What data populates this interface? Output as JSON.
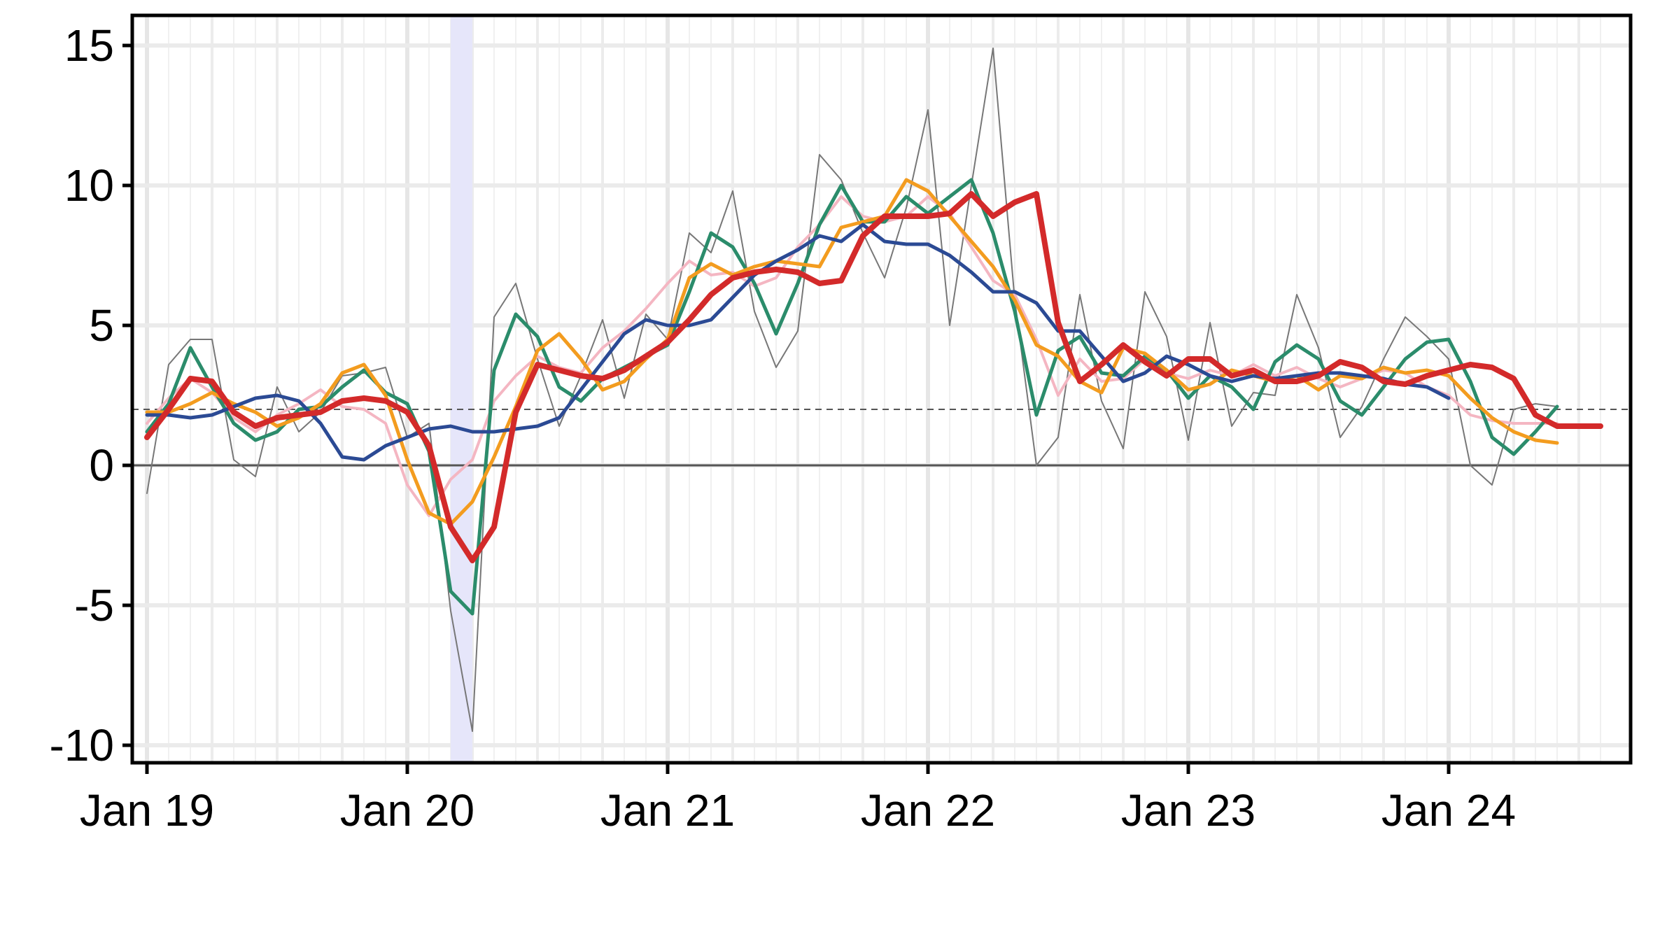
{
  "chart_data": {
    "type": "line",
    "title": "",
    "xlabel": "",
    "ylabel": "",
    "x_start": "2019-01",
    "x_step": "1 month",
    "xlim": [
      "2019-01",
      "2024-08"
    ],
    "ylim": [
      -10.5,
      15.9
    ],
    "yticks": [
      15,
      10,
      5,
      0,
      -5,
      -10
    ],
    "ytick_labels": [
      "15",
      "10",
      "5",
      "0",
      "-5",
      "-10"
    ],
    "xticks": [
      "2019-01",
      "2020-01",
      "2021-01",
      "2022-01",
      "2023-01",
      "2024-01"
    ],
    "xtick_labels": [
      "Jan 19",
      "Jan 20",
      "Jan 21",
      "Jan 22",
      "Jan 23",
      "Jan 24"
    ],
    "grid": true,
    "legend": "none",
    "shaded_periods": [
      {
        "start": "2020-03",
        "end": "2020-04",
        "color": "#e6e6fa"
      }
    ],
    "reference_lines": [
      {
        "y": 0,
        "style": "solid",
        "color": "#555555"
      },
      {
        "y": 2,
        "style": "dashed",
        "color": "#555555"
      }
    ],
    "series": [
      {
        "color": "#777777",
        "width": 2,
        "values": [
          -1.0,
          3.6,
          4.5,
          4.5,
          0.2,
          -0.4,
          2.8,
          1.2,
          1.9,
          3.2,
          3.3,
          3.5,
          1.0,
          1.5,
          -5.2,
          -9.5,
          5.3,
          6.5,
          3.8,
          1.4,
          3.2,
          5.2,
          2.4,
          5.4,
          4.5,
          8.3,
          7.6,
          9.8,
          5.5,
          3.5,
          4.8,
          11.1,
          10.2,
          8.3,
          6.7,
          9.2,
          12.7,
          5.0,
          10.0,
          14.9,
          5.9,
          0.0,
          1.0,
          6.1,
          2.3,
          0.6,
          6.2,
          4.6,
          0.9,
          5.1,
          1.4,
          2.6,
          2.5,
          6.1,
          4.2,
          1.0,
          2.1,
          3.8,
          5.3,
          4.6,
          3.8,
          0.0,
          -0.7,
          2.0,
          2.2,
          2.1
        ]
      },
      {
        "color": "#f4b6c2",
        "width": 4,
        "values": [
          1.5,
          2.4,
          3.1,
          2.6,
          1.7,
          1.2,
          1.8,
          2.2,
          2.7,
          2.1,
          2.0,
          1.5,
          -0.7,
          -1.8,
          -0.5,
          0.2,
          2.3,
          3.2,
          3.9,
          3.5,
          3.3,
          4.2,
          4.8,
          5.6,
          6.5,
          7.3,
          6.8,
          6.9,
          6.4,
          6.7,
          7.8,
          8.6,
          9.6,
          8.9,
          8.7,
          8.9,
          9.6,
          9.0,
          7.8,
          6.6,
          6.1,
          4.5,
          2.5,
          3.8,
          3.0,
          3.1,
          3.8,
          3.3,
          3.1,
          3.4,
          3.2,
          3.6,
          3.2,
          3.5,
          3.1,
          2.8,
          3.1,
          3.4,
          3.3,
          2.8,
          2.5,
          1.8,
          1.6,
          1.5,
          1.5,
          1.5
        ]
      },
      {
        "color": "#2b8c6b",
        "width": 5,
        "values": [
          1.2,
          2.2,
          4.2,
          2.8,
          1.5,
          0.9,
          1.2,
          2.0,
          2.1,
          2.8,
          3.4,
          2.6,
          2.2,
          0.5,
          -4.5,
          -5.3,
          3.4,
          5.4,
          4.6,
          2.8,
          2.3,
          3.1,
          3.5,
          3.9,
          4.3,
          6.2,
          8.3,
          7.8,
          6.5,
          4.7,
          6.5,
          8.6,
          10.0,
          8.7,
          8.7,
          9.6,
          9.0,
          9.6,
          10.2,
          8.3,
          5.5,
          1.8,
          4.1,
          4.6,
          3.3,
          3.2,
          3.9,
          3.4,
          2.4,
          3.2,
          2.8,
          2.0,
          3.7,
          4.3,
          3.8,
          2.3,
          1.8,
          2.8,
          3.8,
          4.4,
          4.5,
          3.0,
          1.0,
          0.4,
          1.2,
          2.1
        ]
      },
      {
        "color": "#f39c1f",
        "width": 5,
        "values": [
          1.9,
          1.9,
          2.2,
          2.6,
          2.2,
          1.9,
          1.4,
          1.7,
          2.2,
          3.3,
          3.6,
          2.5,
          0.2,
          -1.7,
          -2.1,
          -1.3,
          0.3,
          2.1,
          4.1,
          4.7,
          3.8,
          2.7,
          3.0,
          3.8,
          4.5,
          6.7,
          7.2,
          6.8,
          7.1,
          7.3,
          7.2,
          7.1,
          8.5,
          8.7,
          8.9,
          10.2,
          9.8,
          8.9,
          8.0,
          7.1,
          5.9,
          4.3,
          3.9,
          3.0,
          2.6,
          4.2,
          4.0,
          3.4,
          2.7,
          2.9,
          3.4,
          3.2,
          3.0,
          3.2,
          2.7,
          3.2,
          3.1,
          3.5,
          3.3,
          3.4,
          3.2,
          2.4,
          1.7,
          1.2,
          0.9,
          0.8
        ]
      },
      {
        "color": "#2b4a94",
        "width": 5,
        "values": [
          1.8,
          1.8,
          1.7,
          1.8,
          2.1,
          2.4,
          2.5,
          2.3,
          1.5,
          0.3,
          0.2,
          0.7,
          1.0,
          1.3,
          1.4,
          1.2,
          1.2,
          1.3,
          1.4,
          1.7,
          2.7,
          3.7,
          4.7,
          5.2,
          5.0,
          5.0,
          5.2,
          6.0,
          6.8,
          7.3,
          7.7,
          8.2,
          8.0,
          8.6,
          8.0,
          7.9,
          7.9,
          7.5,
          6.9,
          6.2,
          6.2,
          5.8,
          4.8,
          4.8,
          3.9,
          3.0,
          3.3,
          3.9,
          3.6,
          3.2,
          3.0,
          3.2,
          3.1,
          3.2,
          3.3,
          3.3,
          3.2,
          3.1,
          2.9,
          2.8,
          2.4
        ]
      },
      {
        "color": "#d32a2a",
        "width": 8,
        "values": [
          1.0,
          2.0,
          3.1,
          3.0,
          1.9,
          1.4,
          1.7,
          1.8,
          1.9,
          2.3,
          2.4,
          2.3,
          1.9,
          0.7,
          -2.2,
          -3.4,
          -2.2,
          1.9,
          3.6,
          3.4,
          3.2,
          3.1,
          3.4,
          3.9,
          4.4,
          5.2,
          6.1,
          6.7,
          6.9,
          7.0,
          6.9,
          6.5,
          6.6,
          8.2,
          8.9,
          8.9,
          8.9,
          9.0,
          9.7,
          8.9,
          9.4,
          9.7,
          5.1,
          3.0,
          3.6,
          4.3,
          3.7,
          3.2,
          3.8,
          3.8,
          3.2,
          3.4,
          3.0,
          3.0,
          3.2,
          3.7,
          3.5,
          3.0,
          2.9,
          3.2,
          3.4,
          3.6,
          3.5,
          3.1,
          1.8,
          1.4,
          1.4,
          1.4
        ]
      }
    ]
  }
}
